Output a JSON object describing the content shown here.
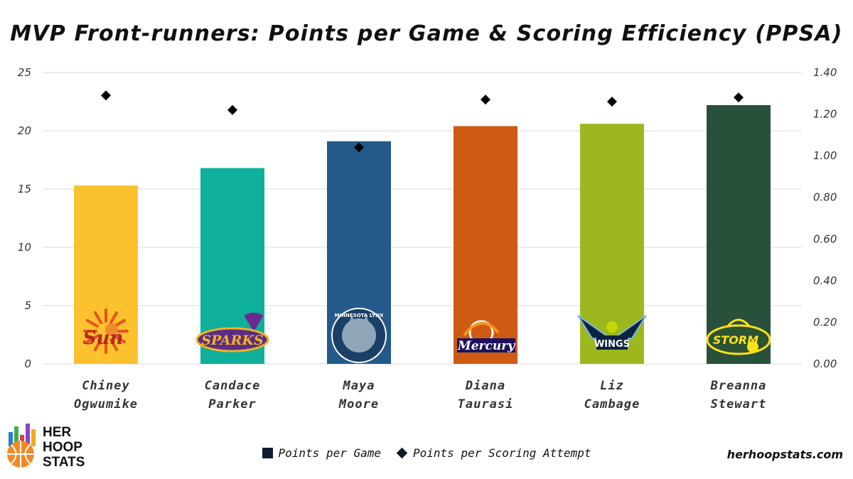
{
  "chart_data": {
    "type": "bar",
    "title": "MVP Front-runners: Points per Game & Scoring Efficiency (PPSA)",
    "categories": [
      [
        "Chiney",
        "Ogwumike"
      ],
      [
        "Candace",
        "Parker"
      ],
      [
        "Maya",
        "Moore"
      ],
      [
        "Diana",
        "Taurasi"
      ],
      [
        "Liz",
        "Cambage"
      ],
      [
        "Breanna",
        "Stewart"
      ]
    ],
    "series": [
      {
        "name": "Points per Game",
        "kind": "bar",
        "axis": "left",
        "values": [
          15.3,
          16.8,
          19.1,
          20.4,
          20.6,
          22.2
        ],
        "colors": [
          "#fbc22d",
          "#0fb09b",
          "#235a8a",
          "#cf5a14",
          "#9cb81e",
          "#28503a"
        ]
      },
      {
        "name": "Points per Scoring Attempt",
        "kind": "marker",
        "axis": "right",
        "values": [
          1.29,
          1.22,
          1.04,
          1.27,
          1.26,
          1.28
        ],
        "color": "#000000"
      }
    ],
    "y_left": {
      "min": 0,
      "max": 25,
      "ticks": [
        "0",
        "5",
        "10",
        "15",
        "20",
        "25"
      ]
    },
    "y_right": {
      "min": 0,
      "max": 1.4,
      "ticks": [
        "0.00",
        "0.20",
        "0.40",
        "0.60",
        "0.80",
        "1.00",
        "1.20",
        "1.40"
      ]
    },
    "grid": true,
    "legend_position": "bottom-center",
    "logos": [
      "sun-logo",
      "sparks-logo",
      "lynx-logo",
      "mercury-logo",
      "wings-logo",
      "storm-logo"
    ],
    "logo_text": [
      "Sun",
      "SPARKS",
      "MINNESOTA LYNX",
      "Mercury",
      "WINGS",
      "STORM"
    ]
  },
  "legend": {
    "ppg_label": "Points per Game",
    "ppsa_label": "Points per Scoring Attempt"
  },
  "branding": {
    "line1": "HER",
    "line2": "HOOP",
    "line3": "STATS",
    "website": "herhoopstats.com",
    "bar_colors": [
      "#2b7bd6",
      "#3fae49",
      "#e23b3b",
      "#8a44c9",
      "#f2a81d"
    ],
    "ball_color": "#f08a24"
  }
}
